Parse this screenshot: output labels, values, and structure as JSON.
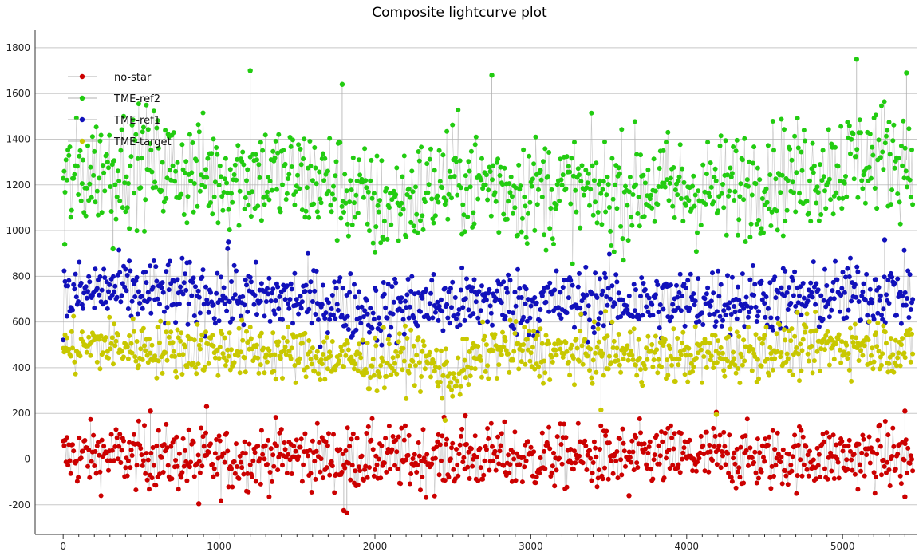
{
  "chart_data": {
    "type": "scatter",
    "title": "Composite lightcurve plot",
    "xlabel": "",
    "ylabel": "",
    "xlim": [
      -180,
      5480
    ],
    "ylim": [
      -330,
      1880
    ],
    "x_ticks": [
      0,
      1000,
      2000,
      3000,
      4000,
      5000
    ],
    "y_ticks": [
      -200,
      0,
      200,
      400,
      600,
      800,
      1000,
      1200,
      1400,
      1600,
      1800
    ],
    "grid": true,
    "legend_position": "top-left",
    "connecting_lines": true,
    "n_points": 5450,
    "series": [
      {
        "name": "no-star",
        "color": "#cc0000",
        "x": [
          0,
          250,
          500,
          750,
          1000,
          1250,
          1500,
          1750,
          2000,
          2250,
          2500,
          2750,
          3000,
          3250,
          3500,
          3750,
          4000,
          4250,
          4500,
          4750,
          5000,
          5250,
          5450
        ],
        "values": [
          10,
          20,
          10,
          0,
          -10,
          10,
          20,
          0,
          10,
          0,
          10,
          10,
          0,
          10,
          0,
          10,
          10,
          10,
          0,
          10,
          10,
          10,
          0
        ],
        "spread": 80,
        "marked_points": [
          [
            560,
            210
          ],
          [
            870,
            -195
          ],
          [
            920,
            230
          ],
          [
            1800,
            -225
          ],
          [
            1820,
            -235
          ],
          [
            2580,
            190
          ],
          [
            3630,
            -160
          ],
          [
            4190,
            205
          ],
          [
            5400,
            -165
          ],
          [
            5400,
            210
          ]
        ]
      },
      {
        "name": "TME-ref2",
        "color": "#22cc11",
        "x": [
          0,
          250,
          500,
          750,
          1000,
          1250,
          1500,
          1750,
          2000,
          2250,
          2500,
          2750,
          3000,
          3250,
          3500,
          3750,
          4000,
          4250,
          4500,
          4750,
          5000,
          5250,
          5450
        ],
        "values": [
          1200,
          1280,
          1300,
          1260,
          1240,
          1250,
          1230,
          1200,
          1100,
          1150,
          1220,
          1200,
          1180,
          1170,
          1160,
          1200,
          1170,
          1180,
          1240,
          1240,
          1290,
          1340,
          1300
        ],
        "spread": 140,
        "marked_points": [
          [
            10,
            940
          ],
          [
            320,
            920
          ],
          [
            1200,
            1700
          ],
          [
            1790,
            1640
          ],
          [
            2750,
            1680
          ],
          [
            5090,
            1750
          ],
          [
            5410,
            1690
          ]
        ]
      },
      {
        "name": "TME-ref1",
        "color": "#1111bb",
        "x": [
          0,
          250,
          500,
          750,
          1000,
          1250,
          1500,
          1750,
          2000,
          2250,
          2500,
          2750,
          3000,
          3250,
          3500,
          3750,
          4000,
          4250,
          4500,
          4750,
          5000,
          5250,
          5450
        ],
        "values": [
          700,
          740,
          730,
          720,
          720,
          700,
          700,
          680,
          640,
          680,
          670,
          700,
          680,
          690,
          700,
          680,
          690,
          700,
          700,
          700,
          720,
          730,
          720
        ],
        "spread": 85,
        "marked_points": [
          [
            1060,
            950
          ],
          [
            5270,
            960
          ]
        ]
      },
      {
        "name": "TME-target",
        "color": "#c8c800",
        "x": [
          0,
          250,
          500,
          750,
          1000,
          1250,
          1500,
          1750,
          2000,
          2250,
          2500,
          2750,
          3000,
          3250,
          3500,
          3750,
          4000,
          4250,
          4500,
          4750,
          5000,
          5250,
          5450
        ],
        "values": [
          480,
          500,
          490,
          480,
          480,
          470,
          460,
          440,
          420,
          450,
          360,
          480,
          470,
          460,
          470,
          450,
          450,
          460,
          480,
          480,
          500,
          500,
          470
        ],
        "spread": 70,
        "marked_points": [
          [
            2450,
            170
          ],
          [
            4190,
            195
          ],
          [
            3450,
            215
          ]
        ]
      }
    ]
  }
}
